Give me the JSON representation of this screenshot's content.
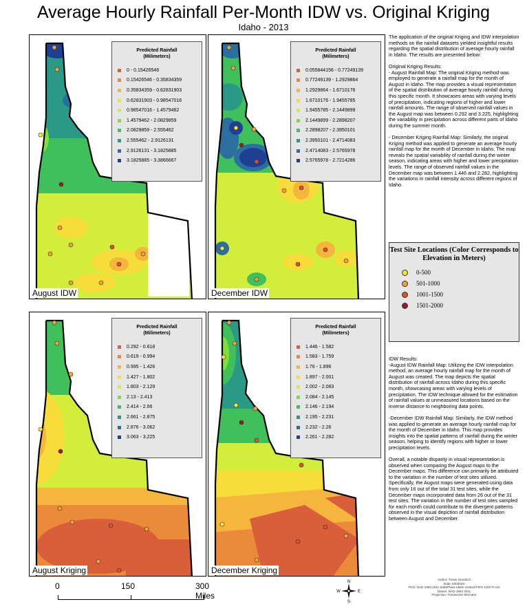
{
  "title": "Average Hourly Rainfall Per-Month IDW vs. Original Kriging",
  "subtitle": "Idaho - 2013",
  "legend_title_line1": "Predicted Rainfall",
  "legend_title_line2": "(Milimeters)",
  "panels": [
    {
      "label": "August IDW",
      "classes": [
        "0 - 0.15426546",
        "0.15426546 - 0.35834359",
        "0.35834359 - 0.62831903",
        "0.62831903 - 0.98547016",
        "0.98547016 - 1.4579462",
        "1.4579462 - 2.0829859",
        "2.0829859 - 2.555462",
        "2.555462 - 2.9126131",
        "2.9126131 - 3.1825885",
        "3.1825885 - 3.3866667"
      ]
    },
    {
      "label": "December IDW",
      "classes": [
        "0.055844156 - 0.77249139",
        "0.77249139 - 1.2929864",
        "1.2929864 - 1.6710176",
        "1.6710176 - 1.9455785",
        "1.9455785 - 2.1449899",
        "2.1449899 - 2.2898207",
        "2.2898207 - 2.3950101",
        "2.3950101 - 2.4714083",
        "2.4714083 - 2.5765978",
        "2.5765978 - 2.7214286"
      ]
    },
    {
      "label": "August Kriging",
      "classes": [
        "0.292 - 0.618",
        "0.619 - 0.994",
        "0.995 - 1.426",
        "1.427 - 1.802",
        "1.803 - 2.129",
        "2.13 - 2.413",
        "2.414 - 2.66",
        "2.661 - 2.875",
        "2.876 - 3.062",
        "3.063 - 3.225"
      ]
    },
    {
      "label": "December Kriging",
      "classes": [
        "1.446 - 1.582",
        "1.583 - 1.759",
        "1.76 - 1.896",
        "1.897 - 2.001",
        "2.002 - 2.083",
        "2.084 - 2.145",
        "2.146 - 2.194",
        "2.195 - 2.231",
        "2.232 - 2.26",
        "2.261 - 2.282"
      ]
    }
  ],
  "ramp_colors": [
    "#d95f3b",
    "#ea8a3a",
    "#f6b53d",
    "#f7dc3a",
    "#d3ee3a",
    "#7fdd3c",
    "#3fc05a",
    "#2a9a86",
    "#2a6fa0",
    "#1f3f93"
  ],
  "text_intro": "The application of the original Kriging and IDW interpolation methods on the rainfall datasets yielded insightful results regarding the spatial distribution of average hourly rainfall in Idaho. The results are presented below:",
  "text_ok_head": "Original Kriging Results:",
  "text_ok_aug": "- August Rainfall Map: The original Kriging method was employed to generate a rainfall map for the month of August in Idaho. The map provides a visual representation of the spatial distribution of average hourly rainfall during this specific month. It showcases areas with varying levels of precipitation, indicating regions of higher and lower rainfall amounts. The range of observed rainfall values in the August map was between 0.292 and 3.225, highlighting the variability in precipitation across different parts of Idaho during the summer month.",
  "text_ok_dec": "- December Kriging Rainfall Map: Similarly, the original Kriging method was applied to generate an average hourly rainfall map for the month of December in Idaho. The map reveals the spatial variability of rainfall during the winter season, indicating areas with higher and lower precipitation levels. The range of observed rainfall values in the December map was between 1.446 and 2.282, highlighting the variations in rainfall intensity across different regions of Idaho.",
  "sites_title": "Test Site Locations (Color Corresponds to Elevation in Meters)",
  "sites": [
    {
      "label": "0-500",
      "color": "#f7e33a"
    },
    {
      "label": "501-1000",
      "color": "#f4a330"
    },
    {
      "label": "1001-1500",
      "color": "#e0502a"
    },
    {
      "label": "1501-2000",
      "color": "#9a1a2a"
    }
  ],
  "text_idw_head": "IDW Results:",
  "text_idw_aug": "-August IDW Rainfall Map: Utilizing the IDW interpolation method, an average hourly rainfall map for the month of August was created. The map depicts the spatial distribution of rainfall across Idaho during this specific month, showcasing areas with varying levels of precipitation. The IDW technique allowed for the estimation of rainfall values at unmeasured locations based on the inverse distance to neighboring data points.",
  "text_idw_dec": "-December IDW Rainfall Map: Similarly, the IDW method was applied to generate an average hourly rainfall map for the month of December in Idaho. This map provides insights into the spatial patterns of rainfall during the winter season, helping to identify regions with higher or lower precipitation levels.",
  "text_overall": "Overall, a notable disparity in visual representation is observed when comparing the August maps to the December maps. This difference can primarily be attributed to the variation in the number of test sites utilized. Specifically, the August maps were generated using data from only 16 out of the total 31 test sites, while the December maps incorporated data from 26 out of the 31 test sites. The variation in the number of test sites sampled for each month could contribute to the divergent patterns observed in the visual depiction of rainfall distribution between August and December.",
  "footer": {
    "author": "Author: Travis Goodrich",
    "date": "Date: 6/6/2023",
    "pcs": "PCS: NAD 1983 2011 StatePlane Idaho Central FIPS 1102 Ft US",
    "datum": "Datum: NAD 1983 2011",
    "projection": "Projection: Transverse Mercator"
  },
  "scale": {
    "l0": "0",
    "l1": "150",
    "l2": "300 Miles"
  },
  "north": {
    "n": "N",
    "s": "S",
    "e": "E",
    "w": "W"
  }
}
